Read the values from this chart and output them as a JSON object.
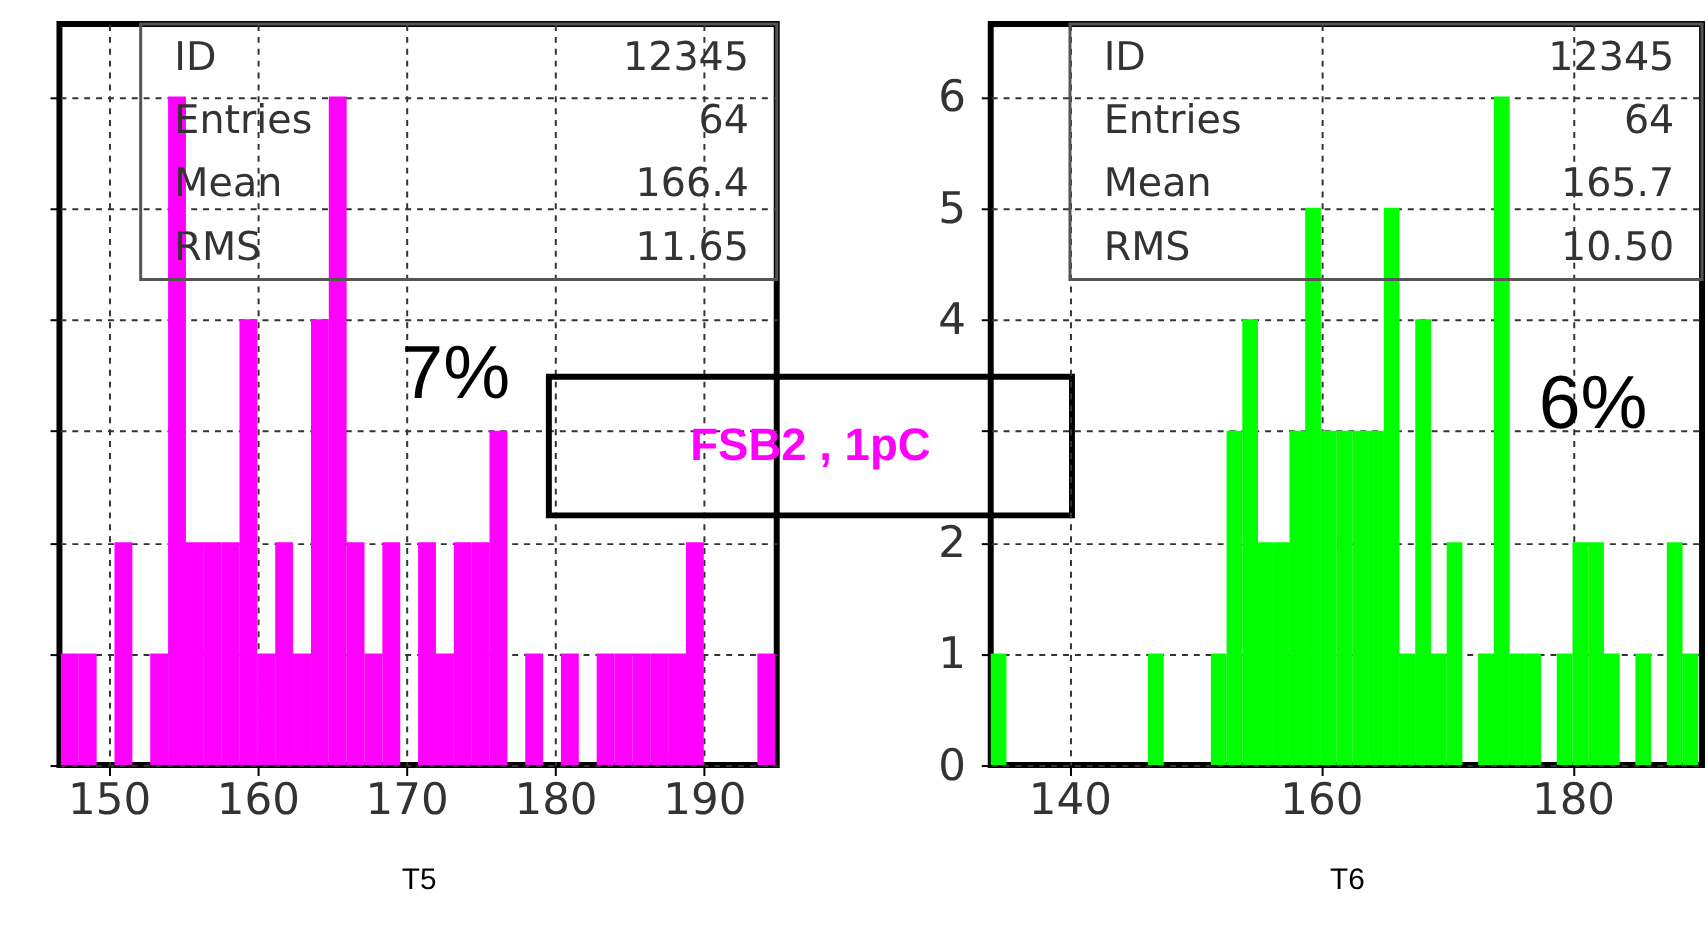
{
  "chart_data": [
    {
      "type": "histogram",
      "xlabel": "T5",
      "color": "#ff00ff",
      "bins": [
        146.8,
        148,
        149.2,
        150.4,
        151.6,
        152.8,
        154,
        155.2,
        156.4,
        157.6,
        158.8,
        160,
        161.2,
        162.4,
        163.6,
        164.8,
        166,
        167.2,
        168.4,
        169.6,
        170.8,
        172,
        173.2,
        174.4,
        175.6,
        176.8,
        178,
        179.2,
        180.4,
        181.6,
        182.8,
        184,
        185.2,
        186.4,
        187.6,
        188.8,
        190,
        191.2,
        192.4,
        193.6,
        194.8
      ],
      "values": [
        1,
        1,
        0,
        2,
        0,
        1,
        6,
        2,
        2,
        2,
        4,
        1,
        2,
        1,
        4,
        6,
        2,
        1,
        2,
        0,
        2,
        1,
        2,
        2,
        3,
        0,
        1,
        0,
        1,
        0,
        1,
        1,
        1,
        1,
        1,
        2,
        0,
        0,
        0,
        1
      ],
      "xlim": [
        146.7,
        194.9
      ],
      "xticks": [
        150,
        160,
        170,
        180,
        190
      ],
      "ylim": [
        0,
        6.65
      ],
      "yticks": [
        0,
        1,
        2,
        3,
        4,
        5,
        6
      ],
      "tick_labels": "x",
      "grid": true,
      "annotations": [
        "ID",
        "12345",
        "Entries",
        "64",
        "Mean",
        "166.4",
        "RMS",
        "11.65",
        "7%",
        "FSB2 , 1pC"
      ]
    },
    {
      "type": "histogram",
      "xlabel": "T6",
      "color": "#00ff00",
      "bins": [
        133.75,
        135,
        136.25,
        137.5,
        138.75,
        140,
        141.25,
        142.5,
        143.75,
        145,
        146.25,
        147.5,
        148.75,
        150,
        151.25,
        152.5,
        153.75,
        155,
        156.25,
        157.5,
        158.75,
        160,
        161.25,
        162.5,
        163.75,
        165,
        166.25,
        167.5,
        168.75,
        170,
        171.25,
        172.5,
        173.75,
        175,
        176.25,
        177.5,
        178.75,
        180,
        181.25,
        182.5,
        183.75,
        185,
        186.25,
        187.5,
        188.75,
        190
      ],
      "values": [
        1,
        0,
        0,
        0,
        0,
        0,
        0,
        0,
        0,
        0,
        1,
        0,
        0,
        0,
        1,
        3,
        4,
        2,
        2,
        3,
        5,
        3,
        3,
        3,
        3,
        5,
        1,
        4,
        1,
        2,
        0,
        1,
        6,
        1,
        1,
        0,
        1,
        2,
        2,
        1,
        0,
        1,
        0,
        2,
        1
      ],
      "xlim": [
        133.75,
        190.3
      ],
      "xticks": [
        140,
        160,
        180
      ],
      "ylim": [
        0,
        6.65
      ],
      "yticks": [
        0,
        1,
        2,
        {
          "value": 3,
          "label": null
        },
        4,
        5,
        6
      ],
      "grid": true,
      "annotations": [
        "ID",
        "12345",
        "Entries",
        "64",
        "Mean",
        "165.7",
        "RMS",
        "10.50",
        "6%"
      ]
    }
  ]
}
